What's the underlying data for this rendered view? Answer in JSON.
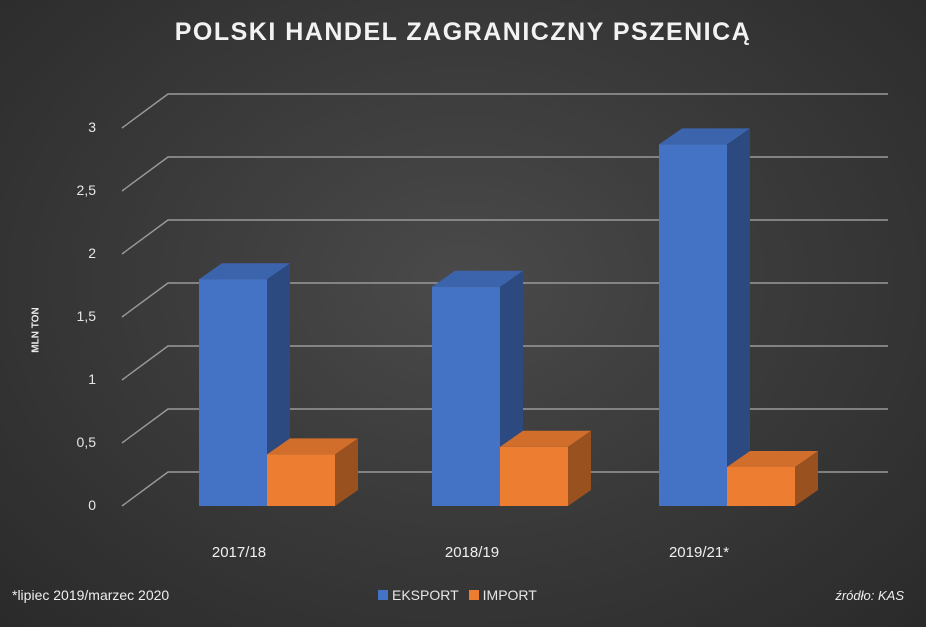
{
  "chart_data": {
    "type": "bar",
    "title": "POLSKI HANDEL ZAGRANICZNY PSZENICĄ",
    "ylabel": "MLN TON",
    "xlabel": "",
    "categories": [
      "2017/18",
      "2018/19",
      "2019/21*"
    ],
    "series": [
      {
        "name": "EKSPORT",
        "values": [
          1.8,
          1.74,
          2.87
        ],
        "color": "#4472c4"
      },
      {
        "name": "IMPORT",
        "values": [
          0.41,
          0.47,
          0.31
        ],
        "color": "#ed7d31"
      }
    ],
    "ylim": [
      0,
      3
    ],
    "yticks": [
      "0",
      "0,5",
      "1",
      "1,5",
      "2",
      "2,5",
      "3"
    ],
    "grid": true,
    "legend_position": "bottom-center",
    "footnote": "*lipiec 2019/marzec 2020",
    "source": "źródło: KAS"
  }
}
